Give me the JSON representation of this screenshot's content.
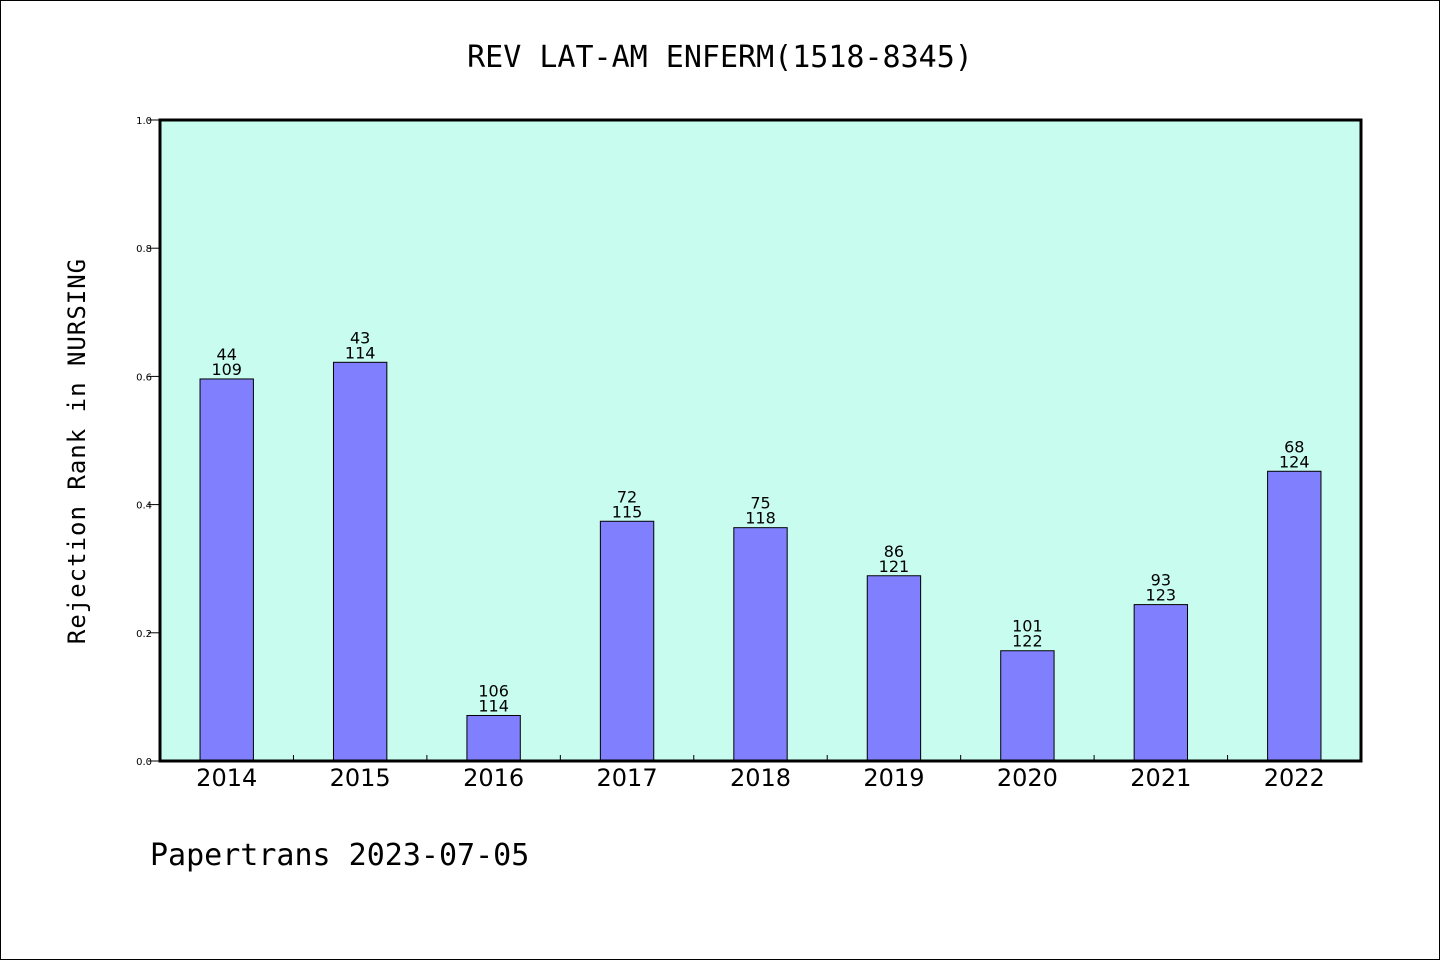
{
  "chart_data": {
    "type": "bar",
    "title": "REV LAT-AM ENFERM(1518-8345)",
    "ylabel": "Rejection Rank in NURSING",
    "xlabel": "",
    "ylim": [
      0,
      1.0
    ],
    "yticks": [
      "0.0",
      "0.2",
      "0.4",
      "0.6",
      "0.8",
      "1.0"
    ],
    "categories": [
      "2014",
      "2015",
      "2016",
      "2017",
      "2018",
      "2019",
      "2020",
      "2021",
      "2022"
    ],
    "values": [
      0.596,
      0.622,
      0.071,
      0.374,
      0.364,
      0.289,
      0.172,
      0.244,
      0.452
    ],
    "labels_top": [
      "44",
      "43",
      "106",
      "72",
      "75",
      "86",
      "101",
      "93",
      "68"
    ],
    "labels_bottom": [
      "109",
      "114",
      "114",
      "115",
      "118",
      "121",
      "122",
      "123",
      "124"
    ],
    "grid": false,
    "colors": {
      "plot_background": "#c8fcef",
      "bar_fill": "#8080ff",
      "bar_stroke": "#000000"
    }
  },
  "footer": "Papertrans 2023-07-05"
}
